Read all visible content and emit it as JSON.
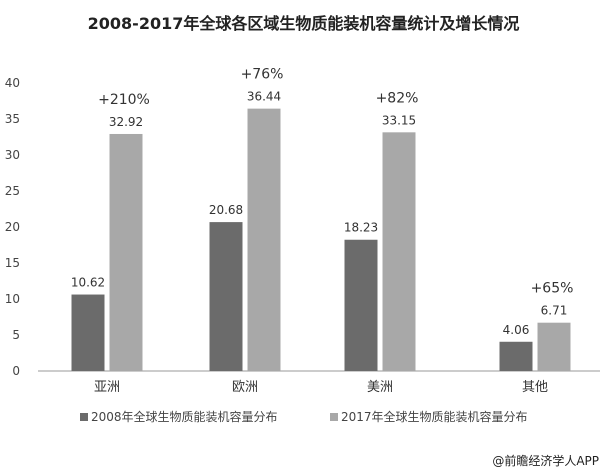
{
  "chart_data": {
    "type": "bar",
    "title": "2008-2017年全球各区域生物质能装机容量统计及增长情况",
    "categories": [
      "亚洲",
      "欧洲",
      "美洲",
      "其他"
    ],
    "series": [
      {
        "name": "2008年全球生物质能装机容量分布",
        "values": [
          10.62,
          20.68,
          18.23,
          4.06
        ],
        "color": "#6b6b6b"
      },
      {
        "name": "2017年全球生物质能装机容量分布",
        "values": [
          32.92,
          36.44,
          33.15,
          6.71
        ],
        "color": "#a8a8a8"
      }
    ],
    "growth_labels": [
      "+210%",
      "+76%",
      "+82%",
      "+65%"
    ],
    "ylim": [
      0,
      40
    ],
    "yticks": [
      0,
      5,
      10,
      15,
      20,
      25,
      30,
      35,
      40
    ],
    "grid": false,
    "legend": "bottom"
  },
  "credit": "@前瞻经济学人APP"
}
